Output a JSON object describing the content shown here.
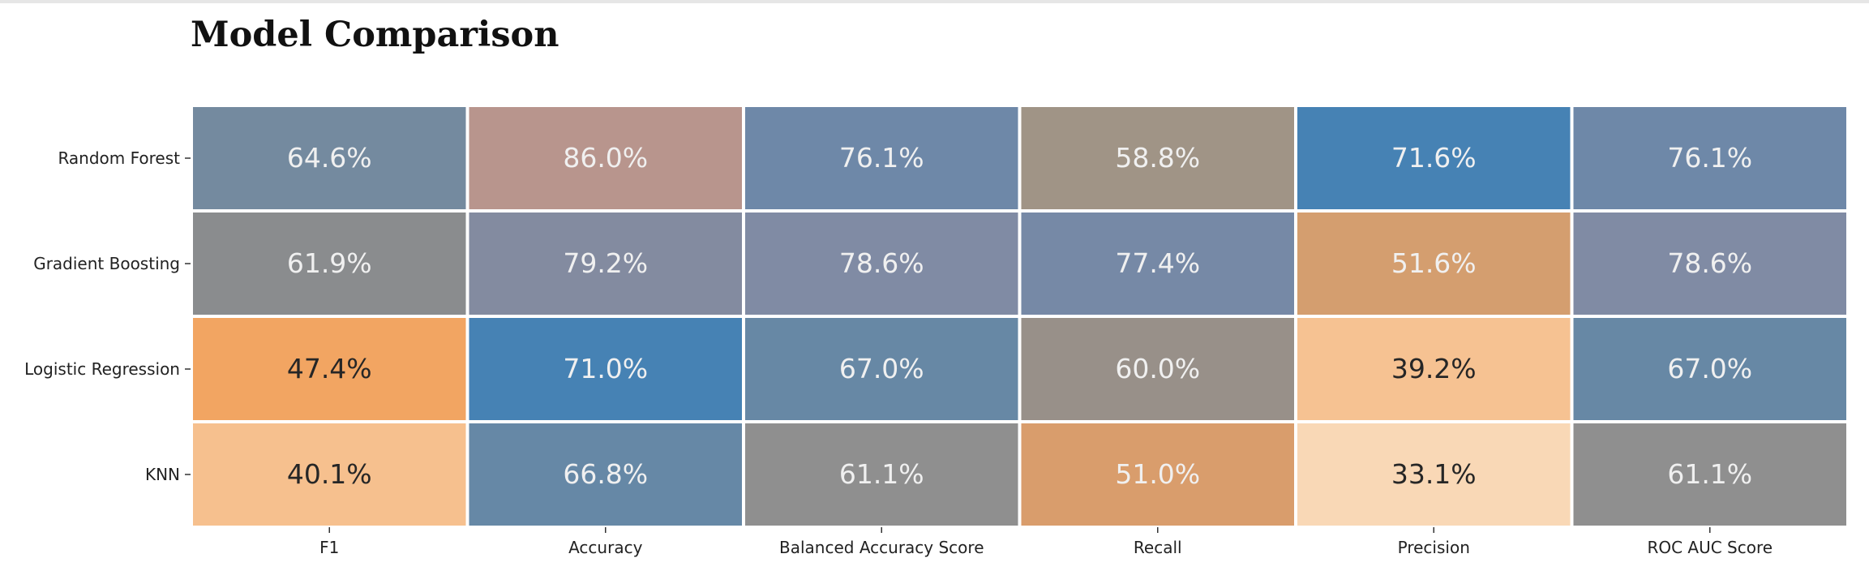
{
  "header": {
    "title": "Model Comparison"
  },
  "chart_data": {
    "type": "heatmap",
    "title": "Model Comparison",
    "xlabel": "",
    "ylabel": "",
    "columns": [
      "F1",
      "Accuracy",
      "Balanced Accuracy Score",
      "Recall",
      "Precision",
      "ROC AUC Score"
    ],
    "rows": [
      "Random Forest",
      "Gradient Boosting",
      "Logistic Regression",
      "KNN"
    ],
    "values": [
      [
        64.6,
        86.0,
        76.1,
        58.8,
        71.6,
        76.1
      ],
      [
        61.9,
        79.2,
        78.6,
        77.4,
        51.6,
        78.6
      ],
      [
        47.4,
        71.0,
        67.0,
        60.0,
        39.2,
        67.0
      ],
      [
        40.1,
        66.8,
        61.1,
        51.0,
        33.1,
        61.1
      ]
    ],
    "labels": [
      [
        "64.6%",
        "86.0%",
        "76.1%",
        "58.8%",
        "71.6%",
        "76.1%"
      ],
      [
        "61.9%",
        "79.2%",
        "78.6%",
        "77.4%",
        "51.6%",
        "78.6%"
      ],
      [
        "47.4%",
        "71.0%",
        "67.0%",
        "60.0%",
        "39.2%",
        "67.0%"
      ],
      [
        "40.1%",
        "66.8%",
        "61.1%",
        "51.0%",
        "33.1%",
        "61.1%"
      ]
    ],
    "colors": [
      [
        "#748a9f",
        "#b8958d",
        "#6e88a8",
        "#a09486",
        "#4682b4",
        "#6e88a8"
      ],
      [
        "#8a8c8e",
        "#838ba0",
        "#808ba4",
        "#7689a6",
        "#d49e6f",
        "#808ba4"
      ],
      [
        "#f2a562",
        "#4682b4",
        "#6788a5",
        "#989089",
        "#f6c292",
        "#6788a5"
      ],
      [
        "#f6c08e",
        "#6688a6",
        "#8f8f8f",
        "#d99d6c",
        "#f9d8b6",
        "#8f8f8f"
      ]
    ],
    "text_colors": [
      [
        "#f0f0f0",
        "#f0f0f0",
        "#f0f0f0",
        "#f0f0f0",
        "#f0f0f0",
        "#f0f0f0"
      ],
      [
        "#f0f0f0",
        "#f0f0f0",
        "#f0f0f0",
        "#f0f0f0",
        "#f0f0f0",
        "#f0f0f0"
      ],
      [
        "#262626",
        "#f0f0f0",
        "#f0f0f0",
        "#f0f0f0",
        "#262626",
        "#f0f0f0"
      ],
      [
        "#262626",
        "#f0f0f0",
        "#f0f0f0",
        "#f0f0f0",
        "#262626",
        "#f0f0f0"
      ]
    ],
    "colorbar": false,
    "grid": false,
    "legend": "none"
  }
}
